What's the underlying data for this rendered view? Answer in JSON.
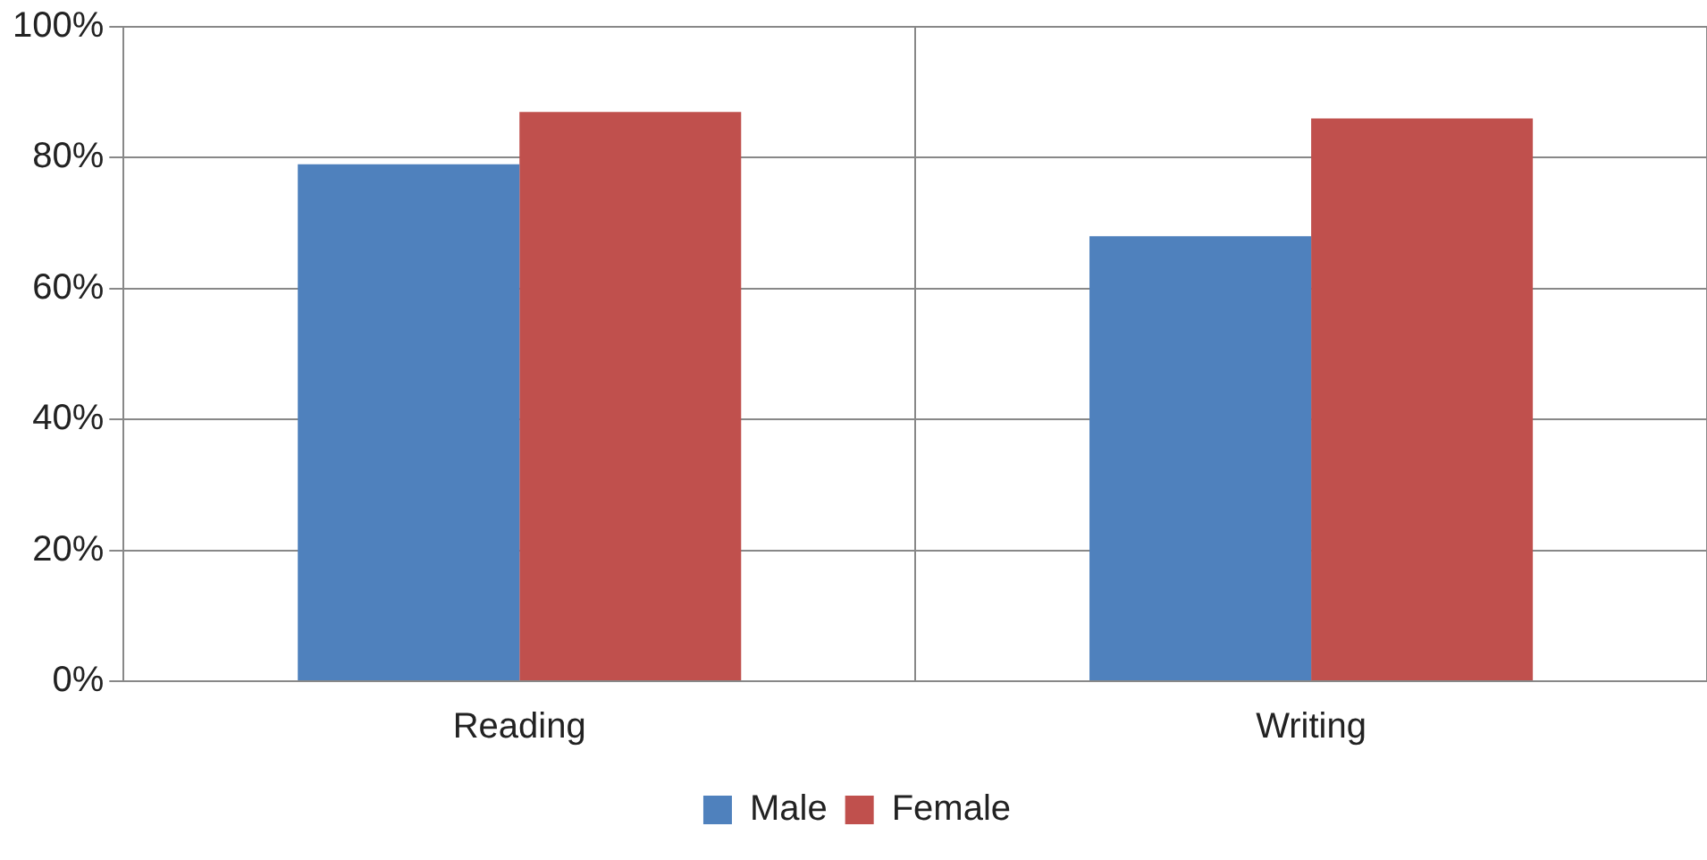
{
  "chart_data": {
    "type": "bar",
    "categories": [
      "Reading",
      "Writing"
    ],
    "series": [
      {
        "name": "Male",
        "color": "#4f81bd",
        "values": [
          79,
          68
        ]
      },
      {
        "name": "Female",
        "color": "#c0504d",
        "values": [
          87,
          86
        ]
      }
    ],
    "ylim": [
      0,
      100
    ],
    "yticks": [
      {
        "value": 0,
        "label": "0%"
      },
      {
        "value": 20,
        "label": "20%"
      },
      {
        "value": 40,
        "label": "40%"
      },
      {
        "value": 60,
        "label": "60%"
      },
      {
        "value": 80,
        "label": "80%"
      },
      {
        "value": 100,
        "label": "100%"
      }
    ],
    "grid": true,
    "legend": "bottom"
  }
}
